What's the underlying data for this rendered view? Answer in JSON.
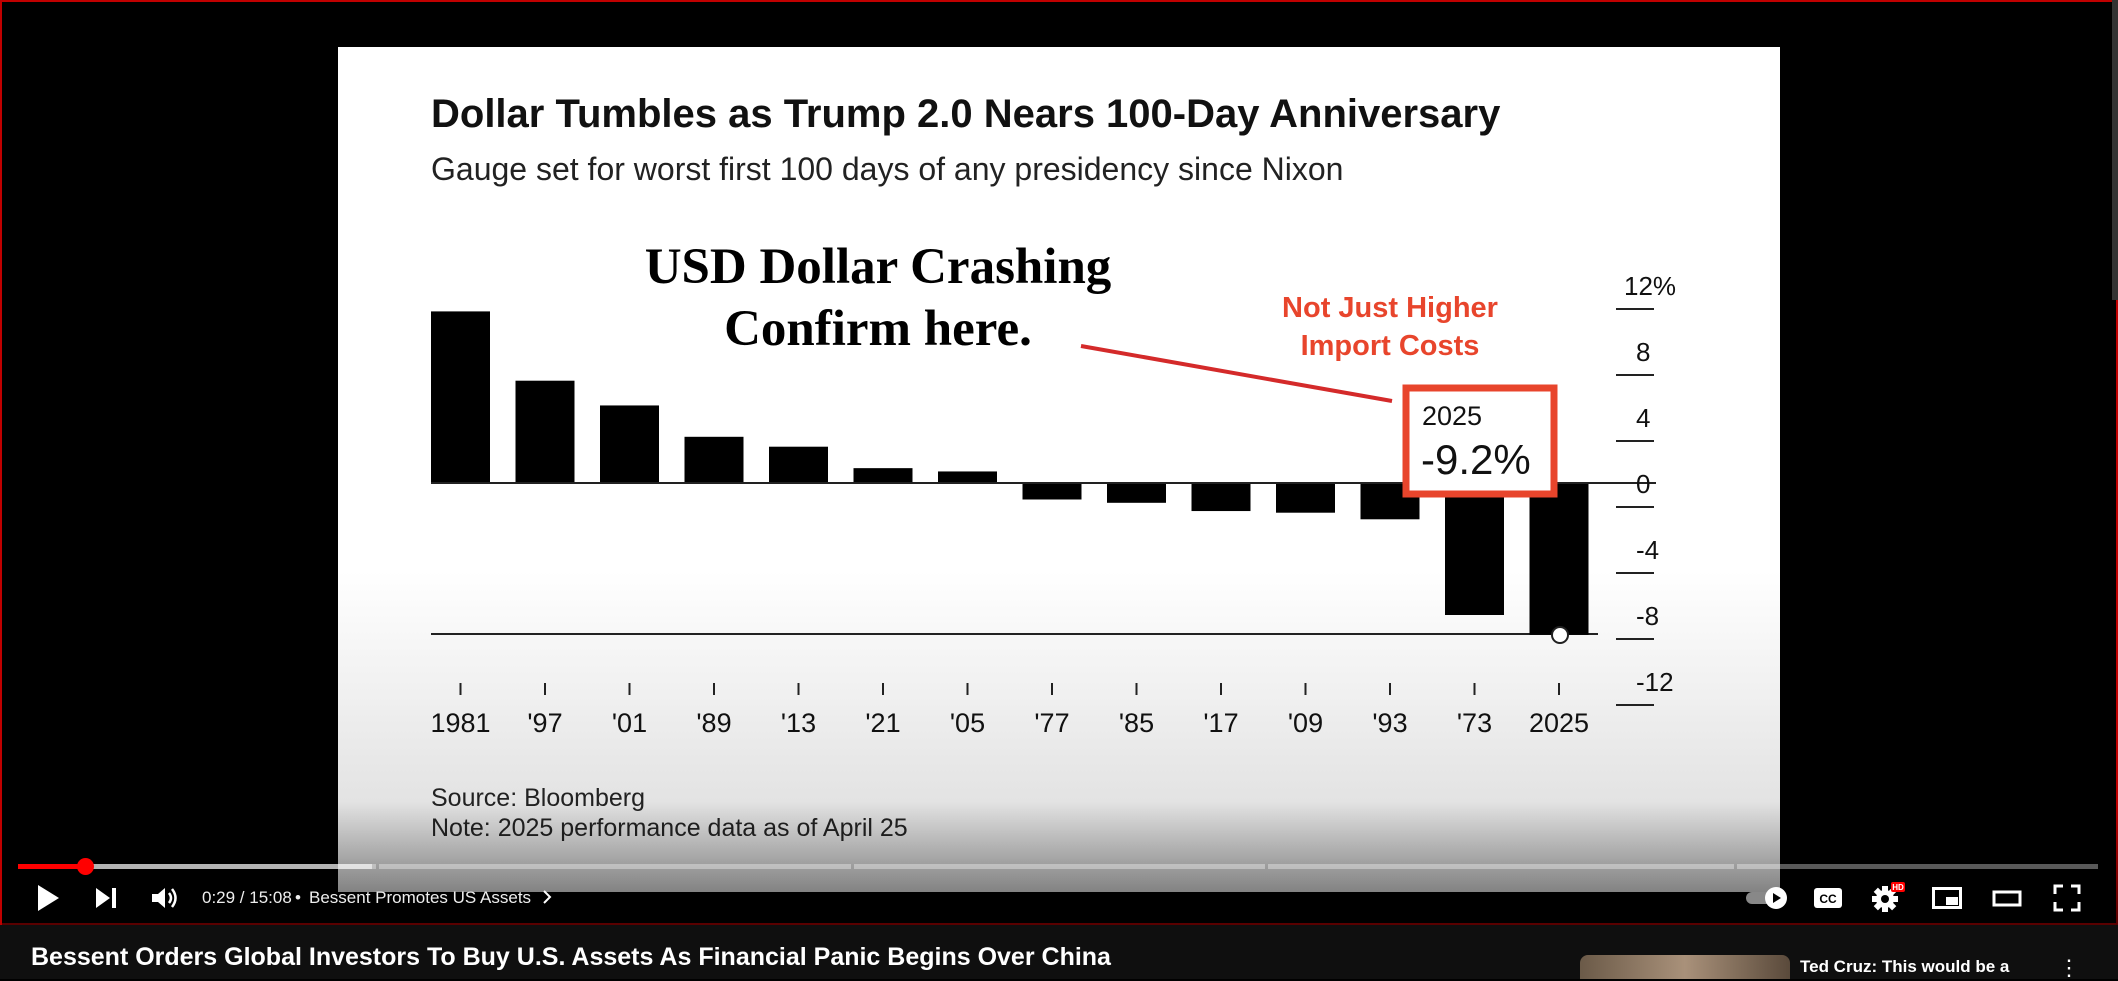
{
  "chart_data": {
    "type": "bar",
    "title": "Dollar Tumbles as Trump 2.0 Nears 100-Day Anniversary",
    "subtitle": "Gauge set for worst first 100 days of any presidency since Nixon",
    "categories": [
      "1981",
      "'97",
      "'01",
      "'89",
      "'13",
      "'21",
      "'05",
      "'77",
      "'85",
      "'17",
      "'09",
      "'93",
      "'73",
      "2025"
    ],
    "values": [
      10.4,
      6.2,
      4.7,
      2.8,
      2.2,
      0.9,
      0.7,
      -1.0,
      -1.2,
      -1.7,
      -1.8,
      -2.2,
      -8.0,
      -9.2
    ],
    "ylim": [
      -12,
      12
    ],
    "yticks": [
      "12%",
      "8",
      "4",
      "0",
      "-4",
      "-8",
      "-12"
    ],
    "ytick_values": [
      12,
      8,
      4,
      0,
      -4,
      -8,
      -12
    ],
    "callout_year": "2025",
    "callout_value": "-9.2%",
    "source": "Source: Bloomberg",
    "note": "Note: 2025 performance data as of April 25"
  },
  "overlay": {
    "headline_line1": "USD Dollar Crashing",
    "headline_line2": "Confirm here.",
    "annotation_line1": "Not Just Higher",
    "annotation_line2": "Import Costs",
    "accent_color": "#e8452c",
    "arrow_color": "#d42a2a"
  },
  "player": {
    "time": "0:29 / 15:08",
    "separator": "•",
    "chapter": "Bessent Promotes US Assets",
    "progress_fraction": 0.032,
    "buffered_fraction": 0.17,
    "hd_badge": "HD",
    "cc_label": "CC",
    "accent": "#ff0000"
  },
  "video": {
    "title": "Bessent Orders Global Investors To Buy U.S. Assets As Financial Panic Begins Over China"
  },
  "related": {
    "title": "Ted Cruz: This would be a"
  }
}
